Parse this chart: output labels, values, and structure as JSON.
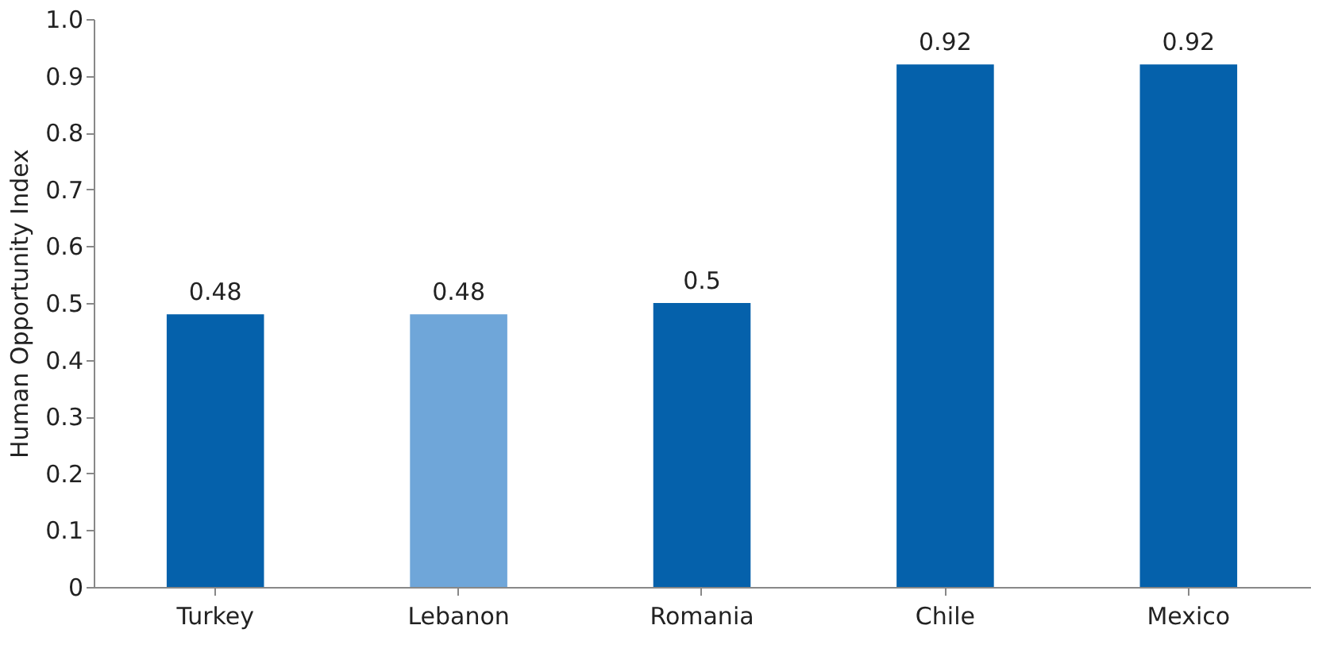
{
  "chart_data": {
    "type": "bar",
    "ylabel": "Human Opportunity Index",
    "categories": [
      "Turkey",
      "Lebanon",
      "Romania",
      "Chile",
      "Mexico"
    ],
    "values": [
      0.48,
      0.48,
      0.5,
      0.92,
      0.92
    ],
    "colors": [
      "#0561ab",
      "#6fa6d9",
      "#0561ab",
      "#0561ab",
      "#0561ab"
    ],
    "ylim": [
      0,
      1
    ],
    "yticks": [
      0,
      0.1,
      0.2,
      0.3,
      0.4,
      0.5,
      0.6,
      0.7,
      0.8,
      0.9,
      {
        "value": 1,
        "label": "1.0"
      }
    ],
    "data_labels": true,
    "grid": false
  }
}
